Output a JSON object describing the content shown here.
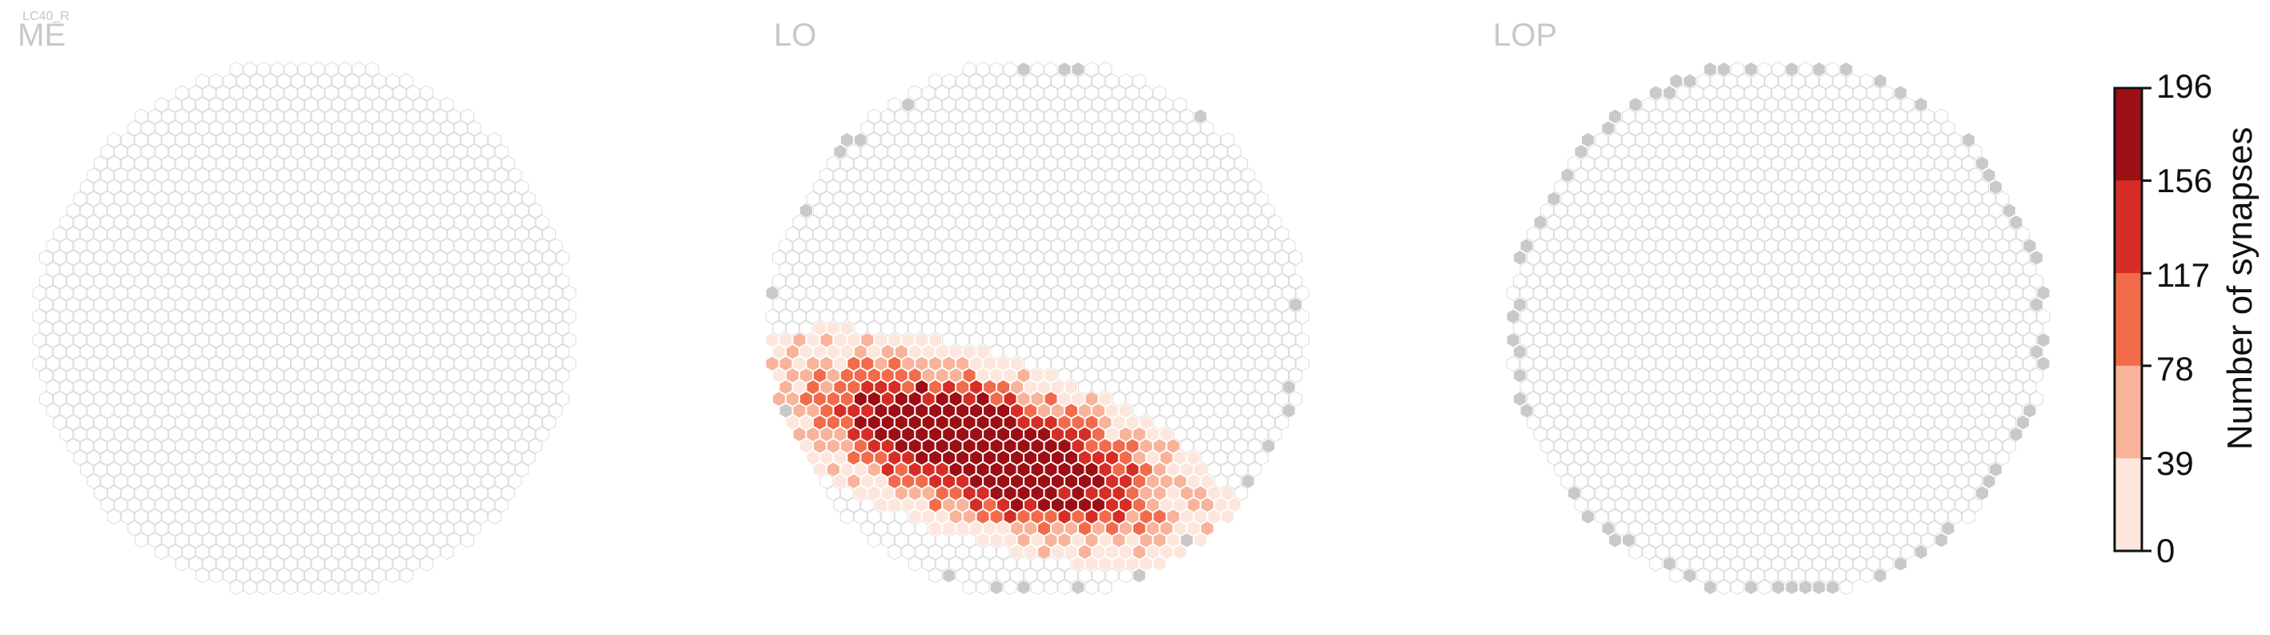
{
  "figure_tag": "LC40_R",
  "chart_data": {
    "type": "heatmap",
    "cell_shape": "hexagon",
    "panels": [
      {
        "title": "ME",
        "cells_with_synapses": 0,
        "boundary_gray_cells": 0
      },
      {
        "title": "LO",
        "cells_with_synapses": "many (hot spot in lower-center region)",
        "boundary_gray_cells": "scattered along the rim"
      },
      {
        "title": "LOP",
        "cells_with_synapses": 0,
        "boundary_gray_cells": "ring along the rim"
      }
    ],
    "colorbar": {
      "label": "Number of synapses",
      "ticks": [
        "196",
        "156",
        "117",
        "78",
        "39",
        "0"
      ],
      "range": [
        0,
        196
      ],
      "bins": [
        {
          "min": 0,
          "max": 39,
          "color": "#fde6dc"
        },
        {
          "min": 39,
          "max": 78,
          "color": "#f8b39a"
        },
        {
          "min": 78,
          "max": 117,
          "color": "#f26b4b"
        },
        {
          "min": 117,
          "max": 156,
          "color": "#d62e26"
        },
        {
          "min": 156,
          "max": 196,
          "color": "#9c0f15"
        }
      ]
    },
    "colors": {
      "empty_cell_stroke": "#dcdcdc",
      "boundary_cell_fill": "#c9c9c9",
      "panel_title": "#c8c8c8"
    }
  }
}
